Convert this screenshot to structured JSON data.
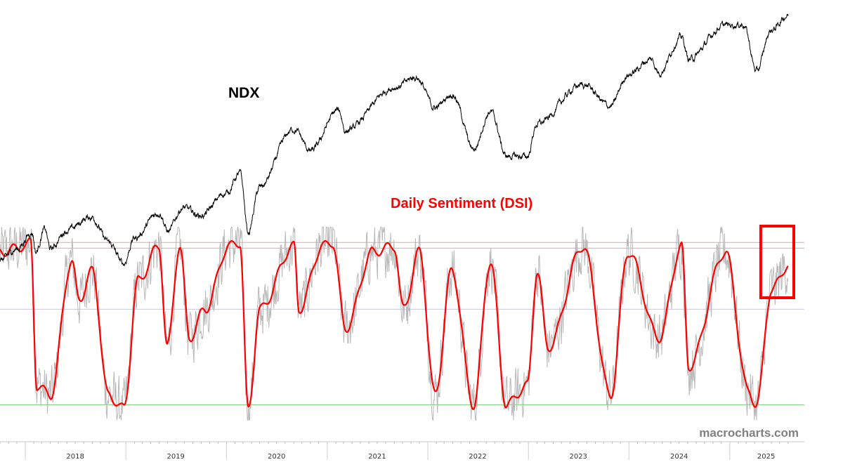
{
  "chart_data": {
    "type": "line",
    "title": "",
    "xlabel": "",
    "ylabel": "",
    "x_ticks": [
      "2018",
      "2019",
      "2020",
      "2021",
      "2022",
      "2023",
      "2024",
      "2025"
    ],
    "series": [
      {
        "name": "NDX",
        "color": "#000000",
        "values": [
          [
            "2017-10-01",
            6000
          ],
          [
            "2017-12-01",
            6400
          ],
          [
            "2018-01-26",
            7020
          ],
          [
            "2018-02-08",
            6300
          ],
          [
            "2018-03-12",
            7130
          ],
          [
            "2018-04-02",
            6400
          ],
          [
            "2018-06-01",
            7100
          ],
          [
            "2018-08-29",
            7650
          ],
          [
            "2018-10-29",
            6650
          ],
          [
            "2018-12-24",
            5900
          ],
          [
            "2019-02-01",
            6800
          ],
          [
            "2019-05-03",
            7840
          ],
          [
            "2019-06-03",
            7050
          ],
          [
            "2019-07-26",
            8050
          ],
          [
            "2019-10-01",
            7700
          ],
          [
            "2019-12-31",
            8730
          ],
          [
            "2020-02-19",
            9720
          ],
          [
            "2020-03-20",
            7000
          ],
          [
            "2020-05-01",
            9000
          ],
          [
            "2020-09-02",
            12420
          ],
          [
            "2020-11-02",
            11000
          ],
          [
            "2021-02-12",
            13800
          ],
          [
            "2021-03-08",
            12300
          ],
          [
            "2021-09-07",
            15700
          ],
          [
            "2021-11-19",
            16570
          ],
          [
            "2022-01-27",
            14000
          ],
          [
            "2022-03-29",
            15100
          ],
          [
            "2022-06-16",
            11100
          ],
          [
            "2022-08-16",
            13700
          ],
          [
            "2022-10-13",
            10700
          ],
          [
            "2022-12-28",
            10680
          ],
          [
            "2023-02-02",
            12800
          ],
          [
            "2023-07-19",
            15900
          ],
          [
            "2023-10-26",
            14100
          ],
          [
            "2023-12-29",
            16800
          ],
          [
            "2024-03-21",
            18300
          ],
          [
            "2024-04-19",
            17000
          ],
          [
            "2024-07-10",
            20670
          ],
          [
            "2024-08-05",
            18300
          ],
          [
            "2024-12-16",
            22100
          ],
          [
            "2025-02-19",
            22200
          ],
          [
            "2025-04-08",
            17100
          ],
          [
            "2025-06-01",
            21500
          ],
          [
            "2025-08-01",
            23400
          ]
        ]
      },
      {
        "name": "Daily Sentiment (DSI)",
        "color": "#ff0000",
        "values": [
          [
            "2017-10-01",
            85
          ],
          [
            "2018-01-01",
            88
          ],
          [
            "2018-01-20",
            90
          ],
          [
            "2018-02-12",
            15
          ],
          [
            "2018-04-02",
            10
          ],
          [
            "2018-06-18",
            80
          ],
          [
            "2018-07-15",
            60
          ],
          [
            "2018-09-01",
            75
          ],
          [
            "2018-10-29",
            10
          ],
          [
            "2018-12-24",
            3
          ],
          [
            "2019-02-15",
            70
          ],
          [
            "2019-05-01",
            88
          ],
          [
            "2019-05-31",
            35
          ],
          [
            "2019-07-15",
            88
          ],
          [
            "2019-08-20",
            40
          ],
          [
            "2019-10-15",
            55
          ],
          [
            "2020-01-10",
            88
          ],
          [
            "2020-02-19",
            90
          ],
          [
            "2020-03-20",
            2
          ],
          [
            "2020-05-01",
            55
          ],
          [
            "2020-09-02",
            88
          ],
          [
            "2020-09-20",
            55
          ],
          [
            "2020-12-15",
            88
          ],
          [
            "2021-01-20",
            90
          ],
          [
            "2021-03-08",
            45
          ],
          [
            "2021-06-15",
            85
          ],
          [
            "2021-09-01",
            88
          ],
          [
            "2021-10-04",
            55
          ],
          [
            "2021-12-01",
            85
          ],
          [
            "2022-01-27",
            10
          ],
          [
            "2022-03-29",
            75
          ],
          [
            "2022-06-16",
            5
          ],
          [
            "2022-08-16",
            80
          ],
          [
            "2022-10-13",
            5
          ],
          [
            "2022-12-28",
            15
          ],
          [
            "2023-02-02",
            75
          ],
          [
            "2023-03-13",
            35
          ],
          [
            "2023-07-19",
            88
          ],
          [
            "2023-10-26",
            10
          ],
          [
            "2023-12-29",
            85
          ],
          [
            "2024-04-19",
            40
          ],
          [
            "2024-07-10",
            88
          ],
          [
            "2024-08-05",
            25
          ],
          [
            "2024-12-16",
            85
          ],
          [
            "2025-03-10",
            12
          ],
          [
            "2025-04-08",
            5
          ],
          [
            "2025-06-01",
            65
          ],
          [
            "2025-08-01",
            78
          ]
        ]
      }
    ],
    "annotations": {
      "ndx_label": "NDX",
      "dsi_label": "Daily Sentiment (DSI)",
      "highlight_box": {
        "from": "2025-05-01",
        "to": "2025-08-01",
        "color": "#ff0000"
      },
      "reference_lines": [
        {
          "value": 90,
          "color": "#f4a0a0"
        },
        {
          "value": 87,
          "color": "#f4a0a0"
        },
        {
          "value": 55,
          "color": "#c8c8e0"
        },
        {
          "value": 5,
          "color": "#77cc77"
        }
      ]
    },
    "grid": false,
    "legend": "none"
  },
  "watermark": "macrocharts.com"
}
